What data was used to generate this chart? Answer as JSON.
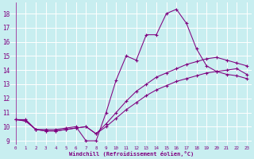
{
  "xlabel": "Windchill (Refroidissement éolien,°C)",
  "background_color": "#c8eef0",
  "line_color": "#800080",
  "grid_color": "#ffffff",
  "xlim": [
    -0.5,
    23.5
  ],
  "ylim": [
    8.7,
    18.8
  ],
  "xticks": [
    0,
    1,
    2,
    3,
    4,
    5,
    6,
    7,
    8,
    9,
    10,
    11,
    12,
    13,
    14,
    15,
    16,
    17,
    18,
    19,
    20,
    21,
    22,
    23
  ],
  "yticks": [
    9,
    10,
    11,
    12,
    13,
    14,
    15,
    16,
    17,
    18
  ],
  "series": [
    [
      10.5,
      10.5,
      9.8,
      9.8,
      9.8,
      9.9,
      10.0,
      9.0,
      9.0,
      11.0,
      13.3,
      15.0,
      14.7,
      16.5,
      16.5,
      18.0,
      18.3,
      17.3,
      15.5,
      14.3,
      13.9,
      14.0,
      14.1,
      13.7
    ],
    [
      10.5,
      10.4,
      9.8,
      9.7,
      9.7,
      9.8,
      9.9,
      10.0,
      9.5,
      10.2,
      11.0,
      11.8,
      12.5,
      13.0,
      13.5,
      13.8,
      14.1,
      14.4,
      14.6,
      14.8,
      14.9,
      14.7,
      14.5,
      14.3
    ],
    [
      10.5,
      10.4,
      9.8,
      9.7,
      9.7,
      9.8,
      9.9,
      10.0,
      9.5,
      10.0,
      10.6,
      11.2,
      11.7,
      12.2,
      12.6,
      12.9,
      13.2,
      13.4,
      13.6,
      13.8,
      13.9,
      13.7,
      13.6,
      13.4
    ]
  ]
}
